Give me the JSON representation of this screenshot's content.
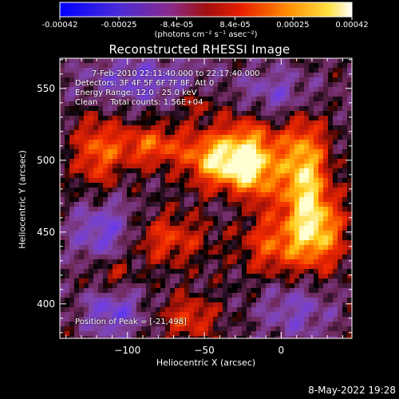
{
  "colorbar": {
    "ticks": [
      -0.00042,
      -0.00025,
      -8.4e-05,
      8.4e-05,
      0.00025,
      0.00042
    ],
    "tick_labels": [
      "-0.00042",
      "-0.00025",
      "-8.4e-05",
      "8.4e-05",
      "0.00025",
      "0.00042"
    ],
    "unit_label": "(photons cm⁻² s⁻¹ asec⁻²)"
  },
  "chart_data": {
    "type": "heatmap",
    "title": "Reconstructed RHESSI Image",
    "xlabel": "Heliocentric X (arcsec)",
    "ylabel": "Heliocentric Y (arcsec)",
    "xlim": [
      -144,
      46
    ],
    "ylim": [
      376,
      571
    ],
    "x_ticks": [
      -100,
      -50,
      0
    ],
    "y_ticks": [
      400,
      450,
      500,
      550
    ],
    "value_range": [
      -0.00042,
      0.00042
    ],
    "peak_position": [
      -21,
      498
    ],
    "annotations": [
      "7-Feb-2010 22:11:40.000 to 22:17:40.000",
      "Detectors: 3F 4F 5F 6F 7F 8F, Att 0",
      "Energy Range: 12.0 - 25.0 keV",
      "Clean     Total counts: 1.56E+04"
    ],
    "peak_label": "Position of Peak = [-21,498]",
    "colormap": [
      "#1a14ff",
      "#7a3df0",
      "#a03c9c",
      "#c81e28",
      "#ff5000",
      "#ffb400",
      "#ffffff"
    ]
  },
  "footer": {
    "timestamp": "8-May-2022 19:28"
  }
}
